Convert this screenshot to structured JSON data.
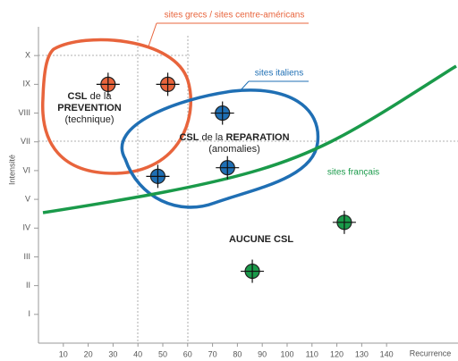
{
  "chart_data": {
    "type": "scatter",
    "x_label": "Recurrence",
    "y_label": "Intensité",
    "xlim": [
      0,
      168
    ],
    "ylim": [
      0,
      11
    ],
    "xticks": [
      10,
      20,
      30,
      40,
      50,
      60,
      70,
      80,
      90,
      100,
      110,
      120,
      130,
      140
    ],
    "yticks": [
      {
        "value": 1,
        "label": "I"
      },
      {
        "value": 2,
        "label": "II"
      },
      {
        "value": 3,
        "label": "III"
      },
      {
        "value": 4,
        "label": "IV"
      },
      {
        "value": 5,
        "label": "V"
      },
      {
        "value": 6,
        "label": "VI"
      },
      {
        "value": 7,
        "label": "VII"
      },
      {
        "value": 8,
        "label": "VIII"
      },
      {
        "value": 9,
        "label": "IX"
      },
      {
        "value": 10,
        "label": "X"
      }
    ],
    "series": [
      {
        "name": "sites grecs / sites centre-américans",
        "color": "#e8643c",
        "x": [
          28,
          52
        ],
        "y": [
          9,
          9
        ]
      },
      {
        "name": "sites italiens",
        "color": "#1f6fb4",
        "x": [
          48,
          76,
          74
        ],
        "y": [
          5.8,
          6.1,
          8
        ]
      },
      {
        "name": "sites français",
        "color": "#1a9a4a",
        "x": [
          86,
          123
        ],
        "y": [
          2.5,
          4.2
        ]
      }
    ],
    "annotations": [
      {
        "parts": [
          "CSL",
          "de la",
          "PREVENTION",
          "(technique)"
        ]
      },
      {
        "parts": [
          "CSL",
          "de la",
          "REPARATION",
          "(anomalies)"
        ]
      },
      {
        "parts": [
          "AUCUNE CSL"
        ]
      }
    ]
  }
}
